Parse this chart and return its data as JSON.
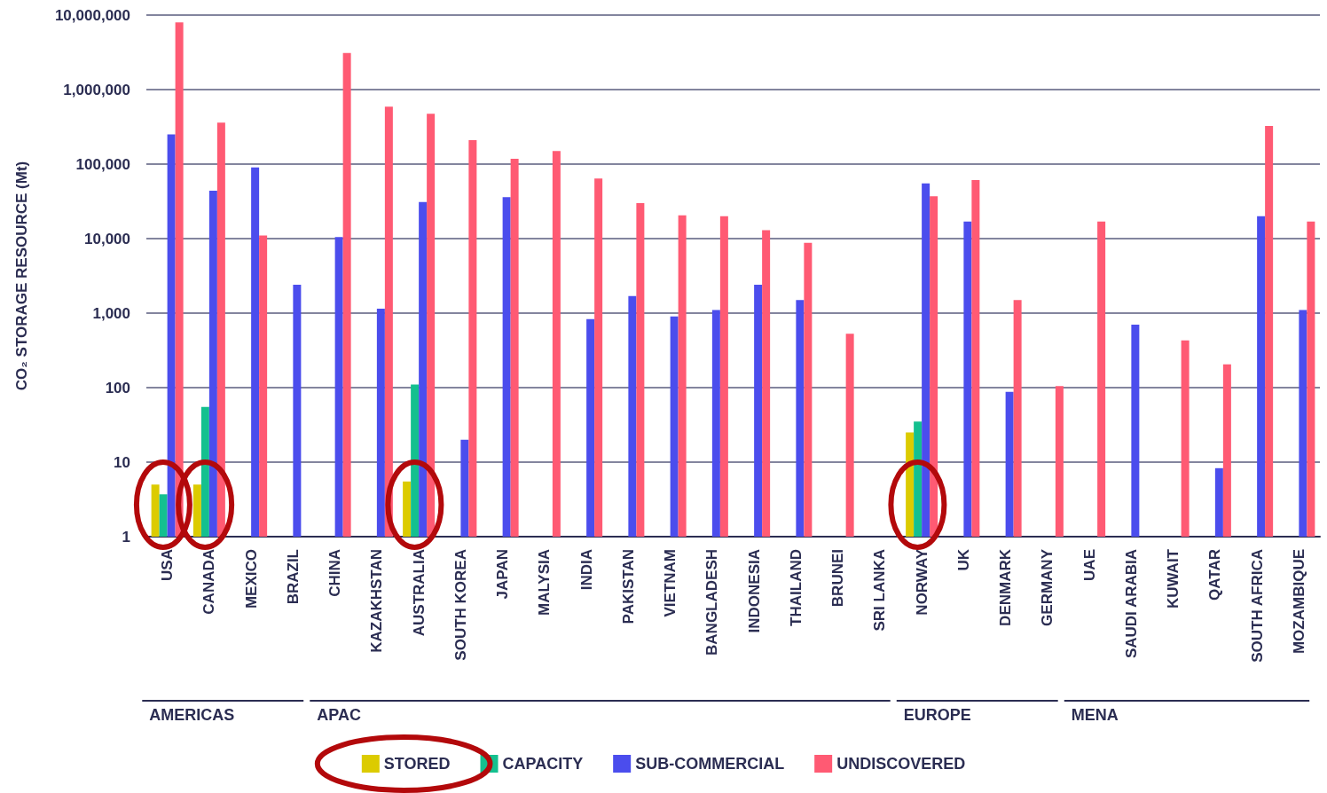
{
  "chart_data": {
    "type": "bar",
    "ylabel": "CO₂ STORAGE RESOURCE (Mt)",
    "categories": [
      "USA",
      "CANADA",
      "MEXICO",
      "BRAZIL",
      "CHINA",
      "KAZAKHSTAN",
      "AUSTRALIA",
      "SOUTH KOREA",
      "JAPAN",
      "MALYSIA",
      "INDIA",
      "PAKISTAN",
      "VIETNAM",
      "BANGLADESH",
      "INDONESIA",
      "THAILAND",
      "BRUNEI",
      "SRI LANKA",
      "NORWAY",
      "UK",
      "DENMARK",
      "GERMANY",
      "UAE",
      "SAUDI ARABIA",
      "KUWAIT",
      "QATAR",
      "SOUTH AFRICA",
      "MOZAMBIQUE"
    ],
    "series": [
      {
        "name": "STORED",
        "color": "#dccb00",
        "values": [
          5,
          5,
          null,
          null,
          null,
          null,
          5.5,
          null,
          null,
          null,
          null,
          null,
          null,
          null,
          null,
          null,
          null,
          null,
          25,
          null,
          null,
          null,
          null,
          null,
          null,
          null,
          null,
          null
        ]
      },
      {
        "name": "CAPACITY",
        "color": "#14c08f",
        "values": [
          3.7,
          55,
          null,
          null,
          null,
          null,
          110,
          null,
          null,
          null,
          null,
          null,
          null,
          null,
          null,
          null,
          null,
          null,
          35,
          null,
          null,
          null,
          null,
          null,
          null,
          null,
          null,
          null
        ]
      },
      {
        "name": "SUB-COMMERCIAL",
        "color": "#4b4ded",
        "values": [
          250000,
          44000,
          90000,
          2400,
          10500,
          1150,
          31000,
          20,
          36000,
          null,
          830,
          1700,
          900,
          1100,
          2400,
          1500,
          null,
          null,
          55000,
          17000,
          88,
          null,
          null,
          700,
          null,
          8.3,
          20000,
          1100
        ]
      },
      {
        "name": "UNDISCOVERED",
        "color": "#ff5a73",
        "values": [
          8000000,
          360000,
          11000,
          null,
          3100000,
          590000,
          475000,
          210000,
          118000,
          150000,
          64000,
          30000,
          20500,
          20000,
          13000,
          8800,
          530,
          null,
          37000,
          61000,
          1500,
          105,
          17000,
          null,
          430,
          205,
          325000,
          17000
        ]
      }
    ],
    "ylim": [
      1,
      10000000
    ],
    "yticks": [
      1,
      10,
      100,
      {
        "value": 1000,
        "label": "1,000"
      },
      {
        "value": 10000,
        "label": "10,000"
      },
      {
        "value": 100000,
        "label": "100,000"
      },
      {
        "value": 1000000,
        "label": "1,000,000"
      },
      {
        "value": 10000000,
        "label": "10,000,000"
      }
    ],
    "log": true,
    "grid": "y",
    "legend": "bottom",
    "annotations": [
      "AMERICAS",
      "APAC",
      "EUROPE",
      "MENA"
    ]
  }
}
